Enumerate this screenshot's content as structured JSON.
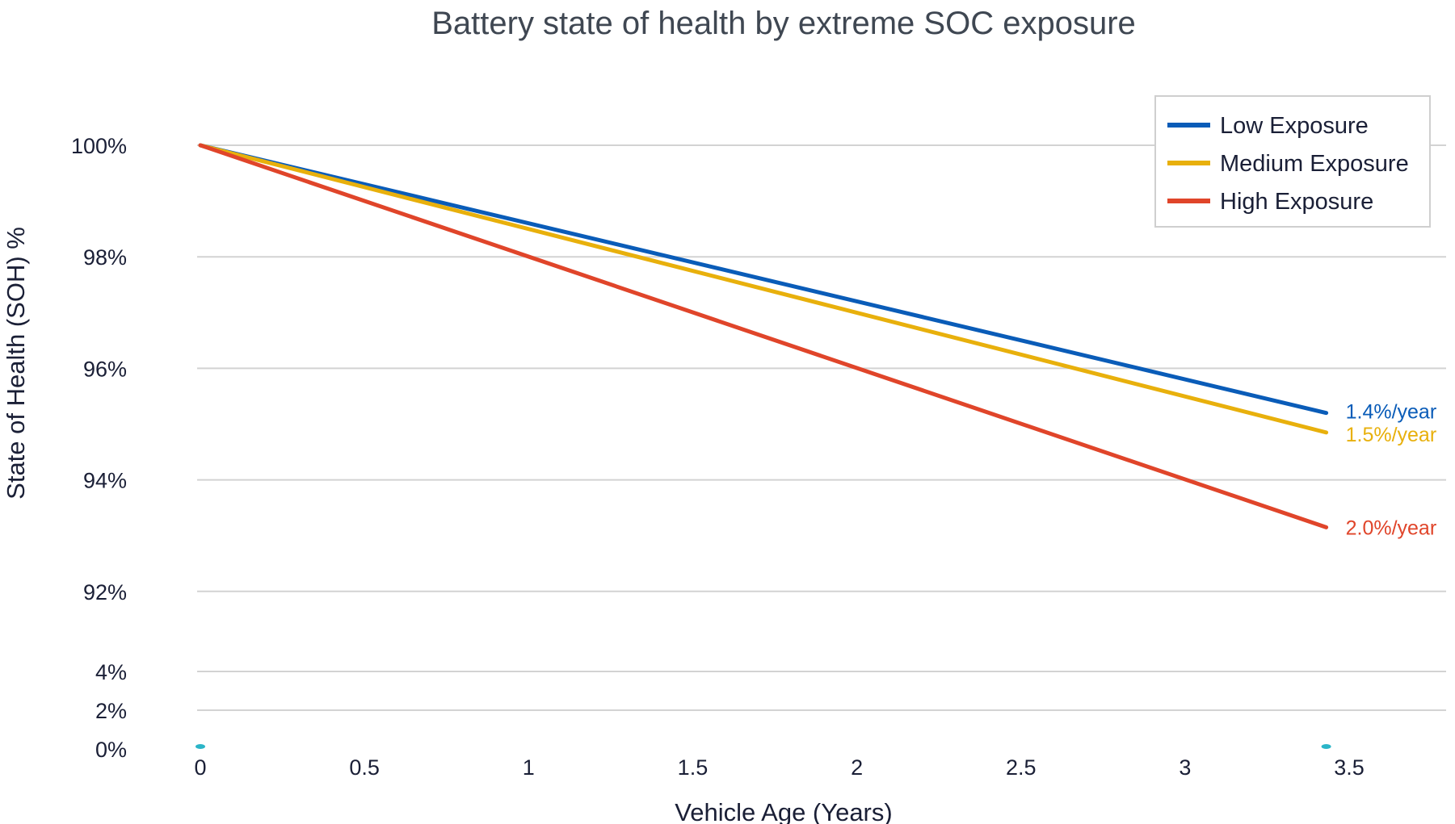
{
  "chart_data": {
    "type": "line",
    "title": "Battery state of health by extreme SOC exposure",
    "xlabel": "Vehicle Age (Years)",
    "ylabel": "State of Health (SOH) %",
    "x_ticks": [
      "0",
      "0.5",
      "1",
      "1.5",
      "2",
      "2.5",
      "3",
      "3.5"
    ],
    "x_tick_values": [
      0,
      0.5,
      1,
      1.5,
      2,
      2.5,
      3,
      3.5
    ],
    "xlim": [
      0,
      3.5
    ],
    "y_axis_note": "broken axis: upper segment 92%-100%, lower segment 0%-4%",
    "y_ticks_upper": [
      "100%",
      "98%",
      "96%",
      "94%",
      "92%"
    ],
    "y_tick_values_upper": [
      100,
      98,
      96,
      94,
      92
    ],
    "y_ticks_lower": [
      "4%",
      "2%",
      "0%"
    ],
    "y_tick_values_lower": [
      4,
      2,
      0
    ],
    "grid": true,
    "legend_position": "top-right",
    "series": [
      {
        "name": "Low Exposure",
        "color": "#0a5cb8",
        "x": [
          0,
          3.43
        ],
        "y": [
          100,
          95.2
        ],
        "end_label": "1.4%/year"
      },
      {
        "name": "Medium Exposure",
        "color": "#e8b00c",
        "x": [
          0,
          3.43
        ],
        "y": [
          100,
          94.85
        ],
        "end_label": "1.5%/year"
      },
      {
        "name": "High Exposure",
        "color": "#e0452a",
        "x": [
          0,
          3.43
        ],
        "y": [
          100,
          93.15
        ],
        "end_label": "2.0%/year"
      }
    ],
    "markers": [
      {
        "x": 0,
        "y": 0,
        "color": "#2bb5c8"
      },
      {
        "x": 3.43,
        "y": 0,
        "color": "#2bb5c8"
      }
    ]
  }
}
